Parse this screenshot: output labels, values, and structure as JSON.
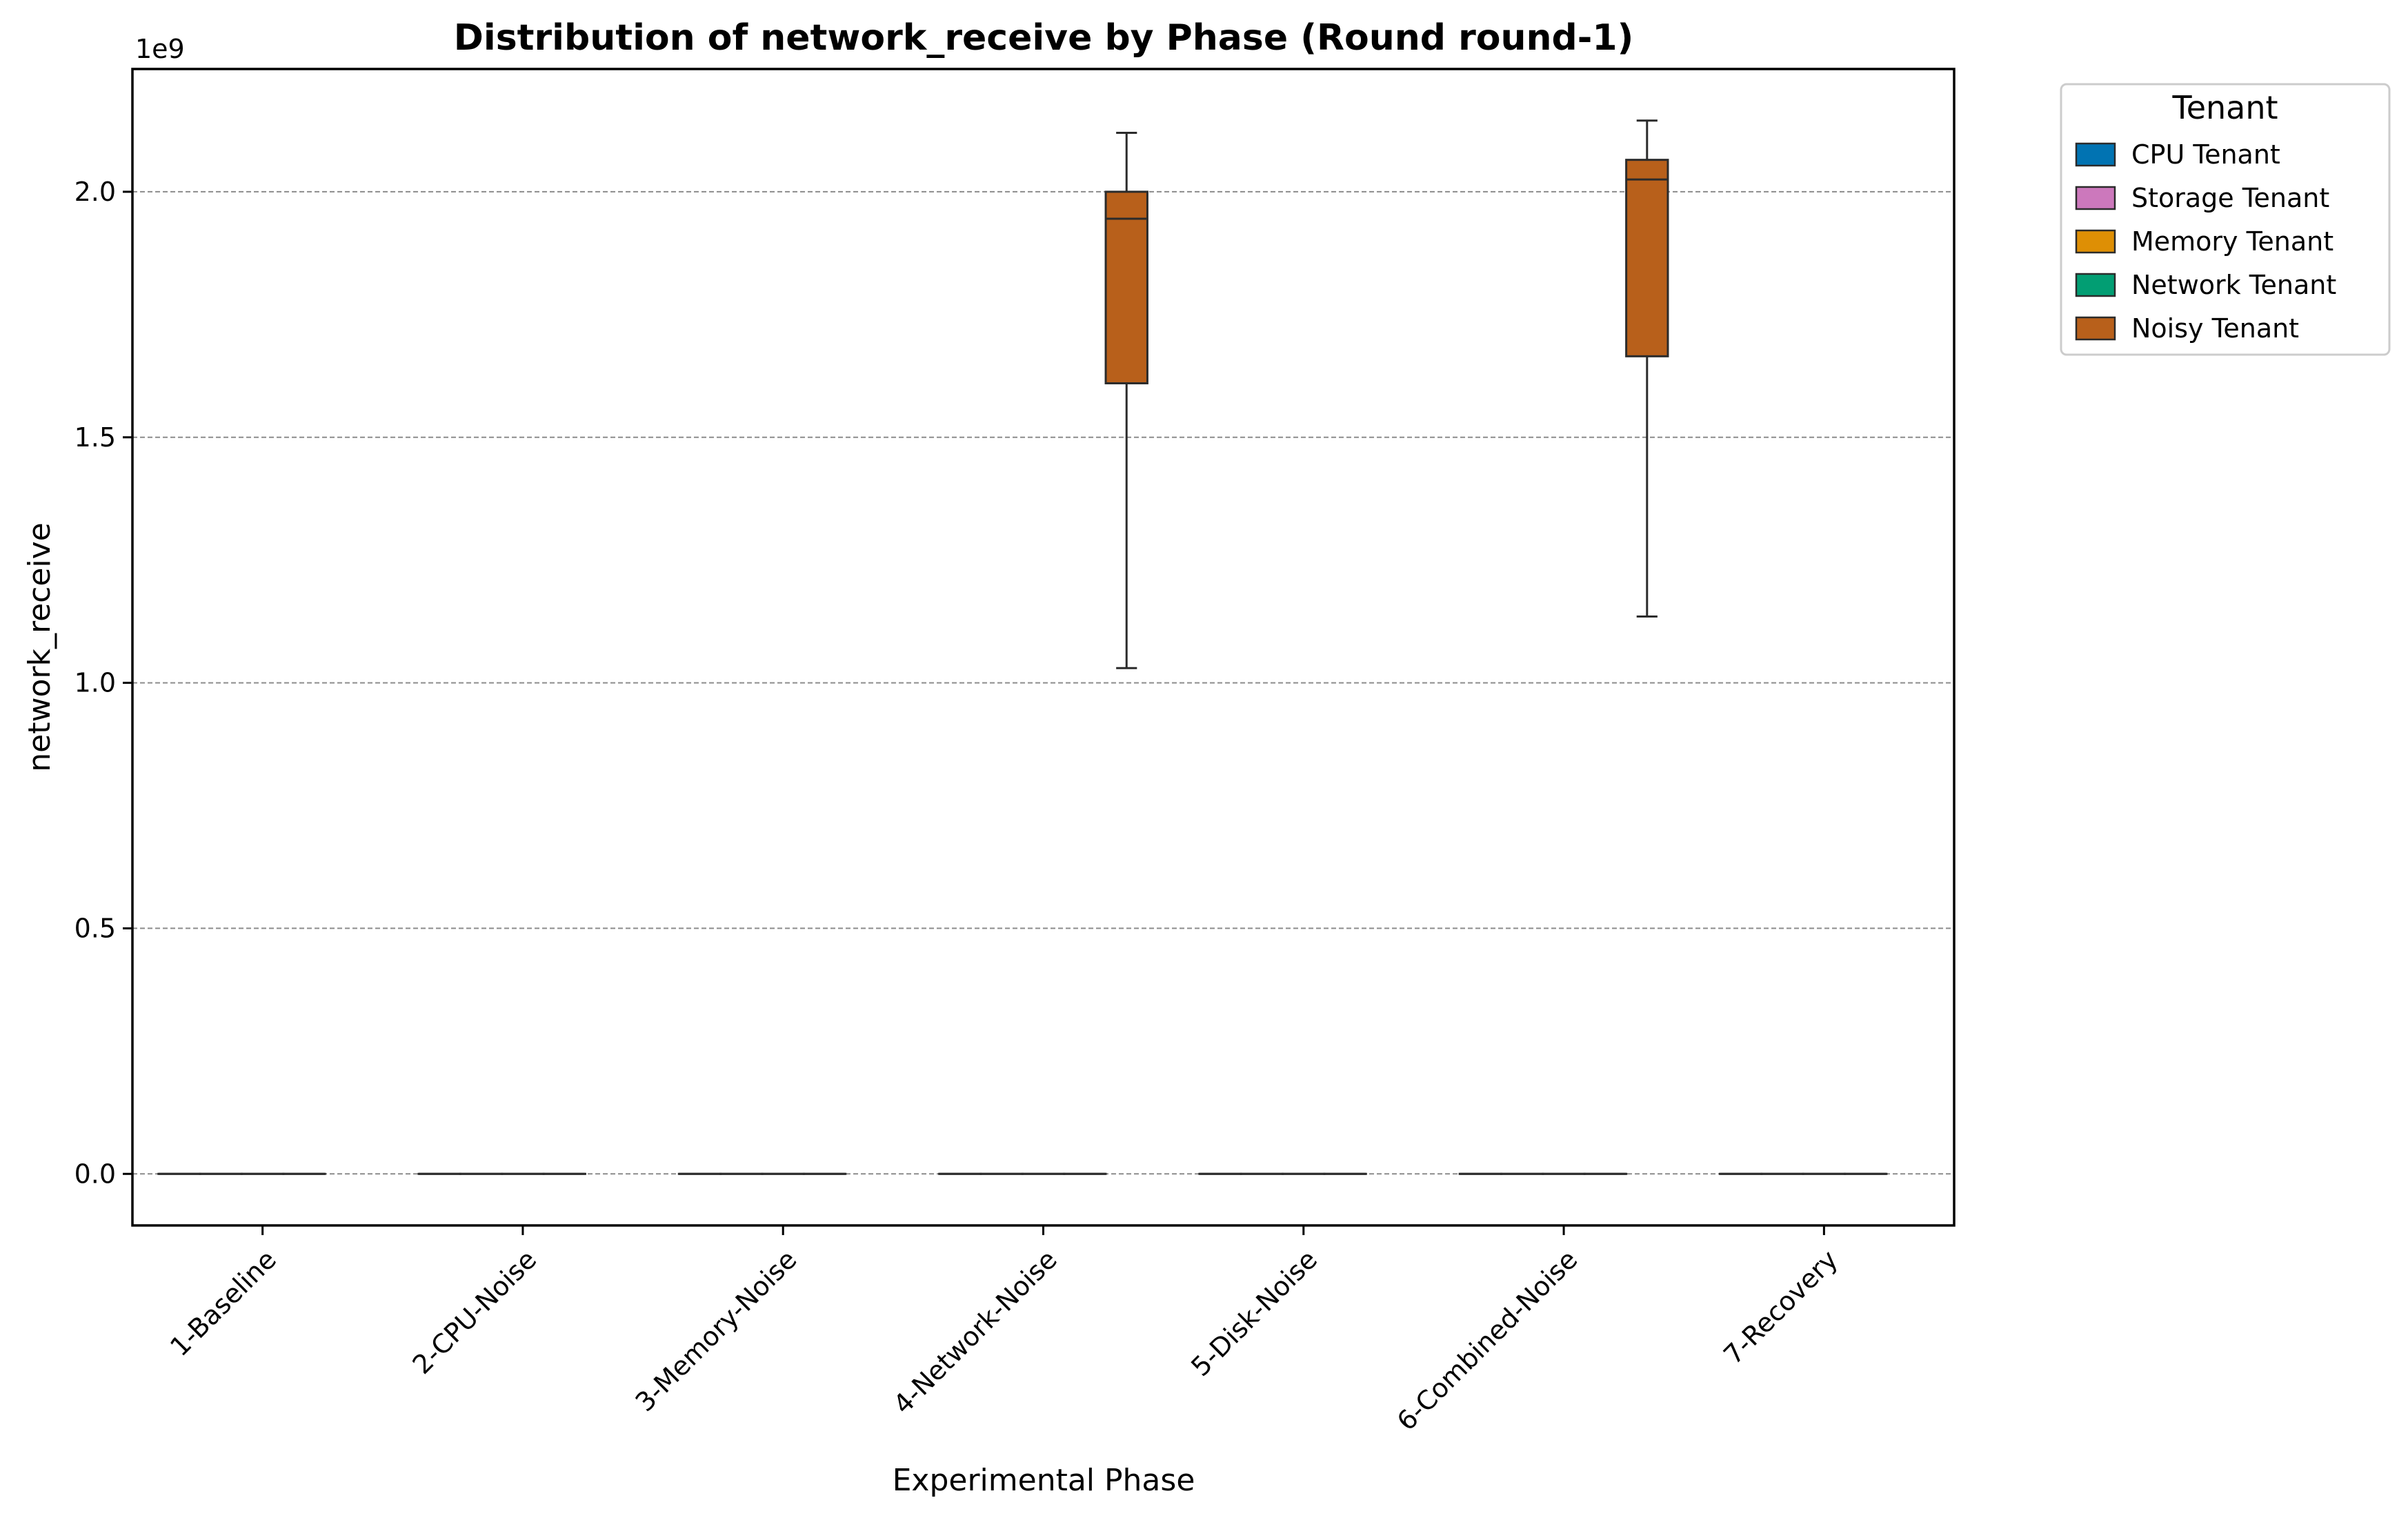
{
  "chart_data": {
    "type": "box",
    "title": "Distribution of network_receive by Phase (Round round-1)",
    "xlabel": "Experimental Phase",
    "ylabel": "network_receive",
    "y_offset_label": "1e9",
    "y_scale_multiplier": 1000000000,
    "ylim": [
      -0.105,
      2.25
    ],
    "yticks": [
      0.0,
      0.5,
      1.0,
      1.5,
      2.0
    ],
    "ytick_labels": [
      "0.0",
      "0.5",
      "1.0",
      "1.5",
      "2.0"
    ],
    "grid": true,
    "legend": {
      "title": "Tenant",
      "placement": "outside-top-right"
    },
    "categories": [
      "1-Baseline",
      "2-CPU-Noise",
      "3-Memory-Noise",
      "4-Network-Noise",
      "5-Disk-Noise",
      "6-Combined-Noise",
      "7-Recovery"
    ],
    "series": [
      {
        "name": "CPU Tenant",
        "color": "#0173b2",
        "boxes": [
          {
            "category": "1-Baseline",
            "min": 0,
            "q1": 0,
            "median": 0,
            "q3": 0,
            "max": 0
          },
          {
            "category": "2-CPU-Noise",
            "min": 0,
            "q1": 0,
            "median": 0,
            "q3": 0,
            "max": 0
          },
          {
            "category": "3-Memory-Noise",
            "min": 0,
            "q1": 0,
            "median": 0,
            "q3": 0,
            "max": 0
          },
          {
            "category": "4-Network-Noise",
            "min": 0,
            "q1": 0,
            "median": 0,
            "q3": 0,
            "max": 0
          },
          {
            "category": "5-Disk-Noise",
            "min": 0,
            "q1": 0,
            "median": 0,
            "q3": 0,
            "max": 0
          },
          {
            "category": "6-Combined-Noise",
            "min": 0,
            "q1": 0,
            "median": 0,
            "q3": 0,
            "max": 0
          },
          {
            "category": "7-Recovery",
            "min": 0,
            "q1": 0,
            "median": 0,
            "q3": 0,
            "max": 0
          }
        ]
      },
      {
        "name": "Storage Tenant",
        "color": "#cc78bc",
        "boxes": [
          {
            "category": "1-Baseline",
            "min": 0,
            "q1": 0,
            "median": 0,
            "q3": 0,
            "max": 0
          },
          {
            "category": "2-CPU-Noise",
            "min": 0,
            "q1": 0,
            "median": 0,
            "q3": 0,
            "max": 0
          },
          {
            "category": "3-Memory-Noise",
            "min": 0,
            "q1": 0,
            "median": 0,
            "q3": 0,
            "max": 0
          },
          {
            "category": "4-Network-Noise",
            "min": 0,
            "q1": 0,
            "median": 0,
            "q3": 0,
            "max": 0
          },
          {
            "category": "5-Disk-Noise",
            "min": 0,
            "q1": 0,
            "median": 0,
            "q3": 0,
            "max": 0
          },
          {
            "category": "6-Combined-Noise",
            "min": 0,
            "q1": 0,
            "median": 0,
            "q3": 0,
            "max": 0
          },
          {
            "category": "7-Recovery",
            "min": 0,
            "q1": 0,
            "median": 0,
            "q3": 0,
            "max": 0
          }
        ]
      },
      {
        "name": "Memory Tenant",
        "color": "#de8f05",
        "boxes": [
          {
            "category": "1-Baseline",
            "min": 0,
            "q1": 0,
            "median": 0,
            "q3": 0,
            "max": 0
          },
          {
            "category": "2-CPU-Noise",
            "min": 0,
            "q1": 0,
            "median": 0,
            "q3": 0,
            "max": 0
          },
          {
            "category": "3-Memory-Noise",
            "min": 0,
            "q1": 0,
            "median": 0,
            "q3": 0,
            "max": 0
          },
          {
            "category": "4-Network-Noise",
            "min": 0,
            "q1": 0,
            "median": 0,
            "q3": 0,
            "max": 0
          },
          {
            "category": "5-Disk-Noise",
            "min": 0,
            "q1": 0,
            "median": 0,
            "q3": 0,
            "max": 0
          },
          {
            "category": "6-Combined-Noise",
            "min": 0,
            "q1": 0,
            "median": 0,
            "q3": 0,
            "max": 0
          },
          {
            "category": "7-Recovery",
            "min": 0,
            "q1": 0,
            "median": 0,
            "q3": 0,
            "max": 0
          }
        ]
      },
      {
        "name": "Network Tenant",
        "color": "#029e73",
        "boxes": [
          {
            "category": "1-Baseline",
            "min": 0,
            "q1": 0,
            "median": 0,
            "q3": 0,
            "max": 0
          },
          {
            "category": "2-CPU-Noise",
            "min": 0,
            "q1": 0,
            "median": 0,
            "q3": 0,
            "max": 0
          },
          {
            "category": "3-Memory-Noise",
            "min": 0,
            "q1": 0,
            "median": 0,
            "q3": 0,
            "max": 0
          },
          {
            "category": "4-Network-Noise",
            "min": 0,
            "q1": 0,
            "median": 0,
            "q3": 0,
            "max": 0
          },
          {
            "category": "5-Disk-Noise",
            "min": 0,
            "q1": 0,
            "median": 0,
            "q3": 0,
            "max": 0
          },
          {
            "category": "6-Combined-Noise",
            "min": 0,
            "q1": 0,
            "median": 0,
            "q3": 0,
            "max": 0
          },
          {
            "category": "7-Recovery",
            "min": 0,
            "q1": 0,
            "median": 0,
            "q3": 0,
            "max": 0
          }
        ]
      },
      {
        "name": "Noisy Tenant",
        "color": "#b8601b",
        "boxes": [
          {
            "category": "4-Network-Noise",
            "min": 1.03,
            "q1": 1.61,
            "median": 1.945,
            "q3": 2.0,
            "max": 2.12
          },
          {
            "category": "6-Combined-Noise",
            "min": 1.135,
            "q1": 1.665,
            "median": 2.025,
            "q3": 2.065,
            "max": 2.145
          }
        ]
      }
    ]
  }
}
